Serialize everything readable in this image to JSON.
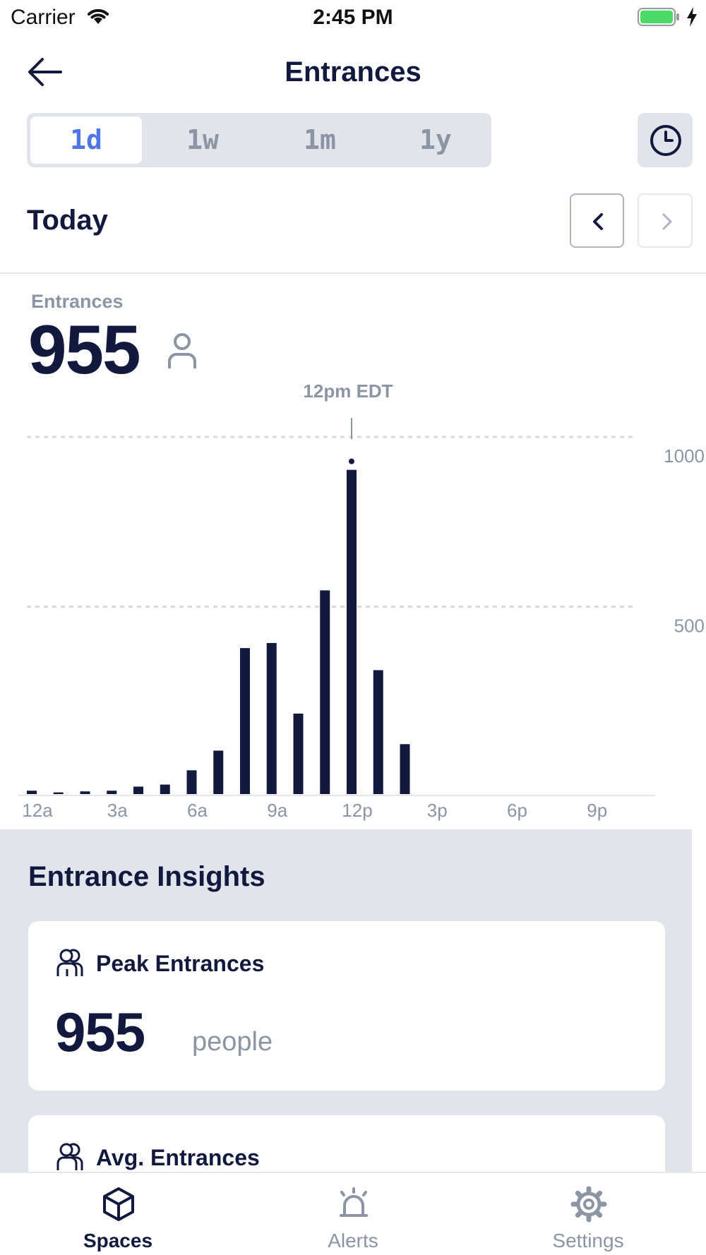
{
  "status_bar": {
    "carrier": "Carrier",
    "time": "2:45 PM"
  },
  "nav": {
    "title": "Entrances"
  },
  "range_tabs": [
    {
      "label": "1d",
      "active": true
    },
    {
      "label": "1w",
      "active": false
    },
    {
      "label": "1m",
      "active": false
    },
    {
      "label": "1y",
      "active": false
    }
  ],
  "period": {
    "title": "Today"
  },
  "metric": {
    "label": "Entrances",
    "value": "955"
  },
  "chart_data": {
    "type": "bar",
    "categories": [
      "12a",
      "1a",
      "2a",
      "3a",
      "4a",
      "5a",
      "6a",
      "7a",
      "8a",
      "9a",
      "10a",
      "11a",
      "12p",
      "1p",
      "2p"
    ],
    "values": [
      10,
      5,
      8,
      10,
      22,
      28,
      70,
      128,
      430,
      445,
      237,
      600,
      955,
      365,
      147
    ],
    "x_tick_labels": [
      "12a",
      "3a",
      "6a",
      "9a",
      "12p",
      "3p",
      "6p",
      "9p"
    ],
    "y_tick_labels": [
      "1000",
      "500"
    ],
    "ylim": [
      0,
      1000
    ],
    "total_hours": 24,
    "highlight": {
      "label": "12pm EDT",
      "index": 12
    },
    "grid": true,
    "bar_color": "#111a3e"
  },
  "insights": {
    "title": "Entrance Insights",
    "cards": [
      {
        "title": "Peak Entrances",
        "value": "955",
        "unit": "people"
      },
      {
        "title": "Avg. Entrances"
      }
    ]
  },
  "tab_bar": {
    "tabs": [
      {
        "label": "Spaces",
        "icon": "cube-icon",
        "active": true
      },
      {
        "label": "Alerts",
        "icon": "bell-icon",
        "active": false
      },
      {
        "label": "Settings",
        "icon": "gear-icon",
        "active": false
      }
    ]
  },
  "colors": {
    "primary": "#111a3e",
    "accent": "#4f76e6",
    "muted": "#8c95a4",
    "battery": "#4cd964"
  }
}
